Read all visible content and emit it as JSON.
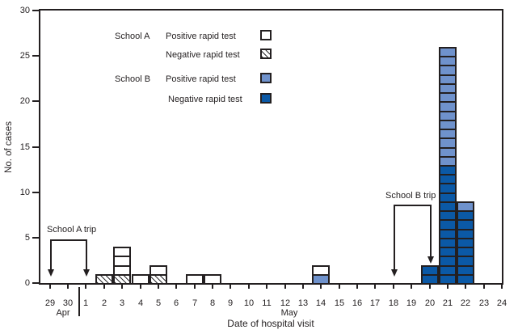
{
  "axes": {
    "y_label": "No. of cases",
    "x_label": "Date of hospital visit",
    "month_left": "Apr",
    "month_right": "May"
  },
  "legend": {
    "group_a_label": "School A",
    "group_b_label": "School B",
    "a_positive_label": "Positive rapid test",
    "a_negative_label": "Negative rapid test",
    "b_positive_label": "Positive rapid test",
    "b_negative_label": "Negative rapid test"
  },
  "annotations": {
    "school_a_trip": {
      "label": "School A trip",
      "from_tick": 0,
      "to_tick": 2
    },
    "school_b_trip": {
      "label": "School B trip",
      "from_tick": 19,
      "to_tick": 21
    }
  },
  "colors": {
    "school_a_positive": "#ffffff",
    "school_b_positive": "#6f92cc",
    "school_b_negative": "#0b59a6",
    "axis_black": "#231f20"
  },
  "chart_data": {
    "type": "bar",
    "stacked": true,
    "title": "",
    "xlabel": "Date of hospital visit",
    "ylabel": "No. of cases",
    "ylim": [
      0,
      30
    ],
    "grid": false,
    "legend_position": "top-left-inside",
    "y_ticks": [
      0,
      5,
      10,
      15,
      20,
      25,
      30
    ],
    "x_ticks": [
      "29",
      "30",
      "1",
      "2",
      "3",
      "4",
      "5",
      "6",
      "7",
      "8",
      "9",
      "10",
      "11",
      "12",
      "13",
      "14",
      "15",
      "16",
      "17",
      "18",
      "19",
      "20",
      "21",
      "22",
      "23",
      "24"
    ],
    "apr_tick_count": 2,
    "series_styles": {
      "school_a_positive": "cell-white",
      "school_a_negative": "cell-hatched",
      "school_b_positive": "cell-bpos",
      "school_b_negative": "cell-bneg"
    },
    "bars": [
      {
        "date": "May 2",
        "tick_index": 3,
        "segments": [
          {
            "series": "school_a_negative",
            "count": 1
          }
        ]
      },
      {
        "date": "May 3",
        "tick_index": 4,
        "segments": [
          {
            "series": "school_a_negative",
            "count": 1
          },
          {
            "series": "school_a_positive",
            "count": 3
          }
        ]
      },
      {
        "date": "May 4",
        "tick_index": 5,
        "segments": [
          {
            "series": "school_a_positive",
            "count": 1
          }
        ]
      },
      {
        "date": "May 5",
        "tick_index": 6,
        "segments": [
          {
            "series": "school_a_negative",
            "count": 1
          },
          {
            "series": "school_a_positive",
            "count": 1
          }
        ]
      },
      {
        "date": "May 7",
        "tick_index": 8,
        "segments": [
          {
            "series": "school_a_positive",
            "count": 1
          }
        ]
      },
      {
        "date": "May 8",
        "tick_index": 9,
        "segments": [
          {
            "series": "school_a_positive",
            "count": 1
          }
        ]
      },
      {
        "date": "May 14",
        "tick_index": 15,
        "segments": [
          {
            "series": "school_b_positive",
            "count": 1
          },
          {
            "series": "school_a_positive",
            "count": 1
          }
        ]
      },
      {
        "date": "May 20",
        "tick_index": 21,
        "segments": [
          {
            "series": "school_b_negative",
            "count": 2
          }
        ]
      },
      {
        "date": "May 21",
        "tick_index": 22,
        "segments": [
          {
            "series": "school_b_negative",
            "count": 13
          },
          {
            "series": "school_b_positive",
            "count": 13
          }
        ]
      },
      {
        "date": "May 22",
        "tick_index": 23,
        "segments": [
          {
            "series": "school_b_negative",
            "count": 8
          },
          {
            "series": "school_b_positive",
            "count": 1
          }
        ]
      }
    ]
  }
}
